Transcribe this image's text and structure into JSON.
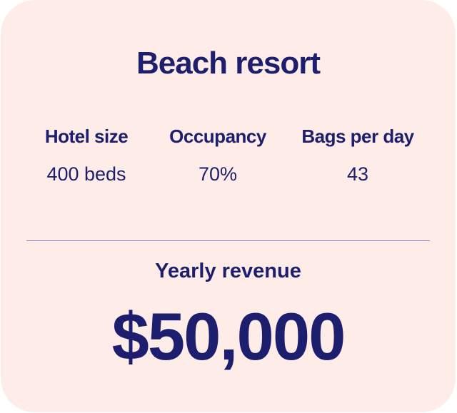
{
  "title": "Beach resort",
  "stats": [
    {
      "label": "Hotel size",
      "value": "400 beds"
    },
    {
      "label": "Occupancy",
      "value": "70%"
    },
    {
      "label": "Bags per day",
      "value": "43"
    }
  ],
  "revenue": {
    "label": "Yearly revenue",
    "value": "$50,000"
  },
  "colors": {
    "background": "#fdece8",
    "text": "#1d1f6e"
  }
}
